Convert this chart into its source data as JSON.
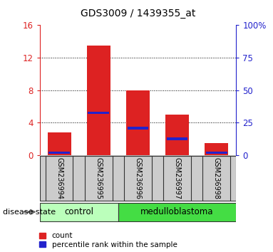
{
  "title": "GDS3009 / 1439355_at",
  "samples": [
    "GSM236994",
    "GSM236995",
    "GSM236996",
    "GSM236997",
    "GSM236998"
  ],
  "count_values": [
    2.8,
    13.5,
    8.0,
    5.0,
    1.5
  ],
  "percentile_values": [
    0.3,
    5.2,
    3.3,
    2.0,
    0.3
  ],
  "ylim_left": [
    0,
    16
  ],
  "ylim_right": [
    0,
    100
  ],
  "yticks_left": [
    0,
    4,
    8,
    12,
    16
  ],
  "yticks_right": [
    0,
    25,
    50,
    75,
    100
  ],
  "bar_color": "#dd2222",
  "marker_color": "#2222cc",
  "bar_width": 0.6,
  "control_color": "#bbffbb",
  "medulloblastoma_color": "#44dd44",
  "disease_state_label": "disease state",
  "legend_count_label": "count",
  "legend_percentile_label": "percentile rank within the sample",
  "bg_color": "#ffffff",
  "plot_bg": "#ffffff",
  "tick_fontsize": 8.5,
  "title_fontsize": 10
}
